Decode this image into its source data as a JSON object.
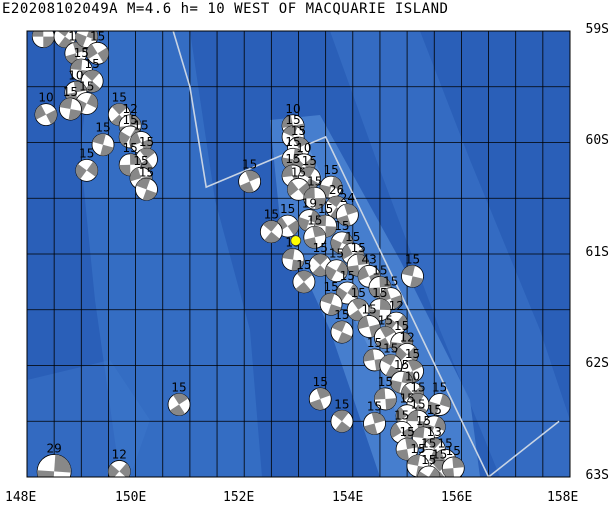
{
  "title": "E20208102049A M=4.6 h= 10 WEST OF MACQUARIE ISLAND",
  "map": {
    "lon_range": [
      148,
      158
    ],
    "lat_range": [
      -63,
      -59
    ],
    "lat_labels": [
      "59S",
      "60S",
      "61S",
      "62S",
      "63S"
    ],
    "lat_values": [
      -59,
      -60,
      -61,
      -62,
      -63
    ],
    "lon_labels": [
      "148E",
      "150E",
      "152E",
      "154E",
      "156E",
      "158E"
    ],
    "lon_values": [
      148,
      150,
      152,
      154,
      156,
      158
    ],
    "colors": {
      "ocean_deep": "#2a5fb8",
      "ocean_mid": "#3d78cc",
      "ridge_shallow": "#5a92dc",
      "grid": "#000000",
      "boundary": "#c8d4e4",
      "beachball_fill": "#888888",
      "event_marker": "#ffff00"
    }
  },
  "event": {
    "id": "E20208102049A",
    "magnitude": "4.6",
    "depth": "10",
    "region": "WEST OF MACQUARIE ISLAND",
    "lon": 152.95,
    "lat": -60.88
  },
  "mechanisms": [
    {
      "lon": 148.3,
      "lat": -59.05,
      "label": "15"
    },
    {
      "lon": 148.7,
      "lat": -59.05,
      "label": "10"
    },
    {
      "lon": 148.9,
      "lat": -59.2,
      "label": "15"
    },
    {
      "lon": 149.1,
      "lat": -59.05,
      "label": "15"
    },
    {
      "lon": 149.3,
      "lat": -59.2,
      "label": "15"
    },
    {
      "lon": 149.0,
      "lat": -59.35,
      "label": "15"
    },
    {
      "lon": 149.2,
      "lat": -59.45,
      "label": "15"
    },
    {
      "lon": 148.9,
      "lat": -59.55,
      "label": "10"
    },
    {
      "lon": 149.1,
      "lat": -59.65,
      "label": "15"
    },
    {
      "lon": 148.35,
      "lat": -59.75,
      "label": "10"
    },
    {
      "lon": 148.8,
      "lat": -59.7,
      "label": "15"
    },
    {
      "lon": 149.7,
      "lat": -59.75,
      "label": "15"
    },
    {
      "lon": 149.9,
      "lat": -59.85,
      "label": "12"
    },
    {
      "lon": 149.9,
      "lat": -59.95,
      "label": "15"
    },
    {
      "lon": 150.1,
      "lat": -60.0,
      "label": "15"
    },
    {
      "lon": 149.4,
      "lat": -60.02,
      "label": "15"
    },
    {
      "lon": 150.2,
      "lat": -60.15,
      "label": "15"
    },
    {
      "lon": 149.9,
      "lat": -60.2,
      "label": "15"
    },
    {
      "lon": 149.1,
      "lat": -60.25,
      "label": "15"
    },
    {
      "lon": 150.1,
      "lat": -60.32,
      "label": "15"
    },
    {
      "lon": 150.2,
      "lat": -60.42,
      "label": "15"
    },
    {
      "lon": 150.8,
      "lat": -62.35,
      "label": "15"
    },
    {
      "lon": 148.5,
      "lat": -62.95,
      "label": "29"
    },
    {
      "lon": 149.7,
      "lat": -62.95,
      "label": "12"
    },
    {
      "lon": 152.9,
      "lat": -59.85,
      "label": "10"
    },
    {
      "lon": 152.9,
      "lat": -59.95,
      "label": "15"
    },
    {
      "lon": 153.0,
      "lat": -60.05,
      "label": "15"
    },
    {
      "lon": 152.9,
      "lat": -60.15,
      "label": "15"
    },
    {
      "lon": 153.1,
      "lat": -60.2,
      "label": "10"
    },
    {
      "lon": 152.9,
      "lat": -60.3,
      "label": "15"
    },
    {
      "lon": 153.2,
      "lat": -60.32,
      "label": "15"
    },
    {
      "lon": 152.1,
      "lat": -60.35,
      "label": "15"
    },
    {
      "lon": 153.6,
      "lat": -60.4,
      "label": "15"
    },
    {
      "lon": 153.0,
      "lat": -60.42,
      "label": "15"
    },
    {
      "lon": 153.3,
      "lat": -60.5,
      "label": "15"
    },
    {
      "lon": 153.7,
      "lat": -60.58,
      "label": "26"
    },
    {
      "lon": 153.9,
      "lat": -60.65,
      "label": "24"
    },
    {
      "lon": 153.2,
      "lat": -60.7,
      "label": "19"
    },
    {
      "lon": 152.8,
      "lat": -60.75,
      "label": "15"
    },
    {
      "lon": 153.5,
      "lat": -60.75,
      "label": "15"
    },
    {
      "lon": 152.5,
      "lat": -60.8,
      "label": "15"
    },
    {
      "lon": 153.3,
      "lat": -60.85,
      "label": "15"
    },
    {
      "lon": 153.8,
      "lat": -60.9,
      "label": "15"
    },
    {
      "lon": 154.0,
      "lat": -61.0,
      "label": "15"
    },
    {
      "lon": 152.9,
      "lat": -61.05,
      "label": "15"
    },
    {
      "lon": 153.4,
      "lat": -61.1,
      "label": "15"
    },
    {
      "lon": 154.1,
      "lat": -61.1,
      "label": "15"
    },
    {
      "lon": 153.7,
      "lat": -61.15,
      "label": "15"
    },
    {
      "lon": 154.3,
      "lat": -61.2,
      "label": "43"
    },
    {
      "lon": 155.1,
      "lat": -61.2,
      "label": "15"
    },
    {
      "lon": 153.1,
      "lat": -61.25,
      "label": "15"
    },
    {
      "lon": 154.5,
      "lat": -61.3,
      "label": "15"
    },
    {
      "lon": 153.9,
      "lat": -61.35,
      "label": "15"
    },
    {
      "lon": 154.7,
      "lat": -61.4,
      "label": "15"
    },
    {
      "lon": 153.6,
      "lat": -61.45,
      "label": "15"
    },
    {
      "lon": 154.1,
      "lat": -61.5,
      "label": "15"
    },
    {
      "lon": 154.5,
      "lat": -61.5,
      "label": "15"
    },
    {
      "lon": 154.8,
      "lat": -61.62,
      "label": "12"
    },
    {
      "lon": 154.3,
      "lat": -61.65,
      "label": "15"
    },
    {
      "lon": 153.8,
      "lat": -61.7,
      "label": "15"
    },
    {
      "lon": 154.6,
      "lat": -61.75,
      "label": "15"
    },
    {
      "lon": 154.9,
      "lat": -61.8,
      "label": "15"
    },
    {
      "lon": 155.0,
      "lat": -61.9,
      "label": "12"
    },
    {
      "lon": 154.4,
      "lat": -61.95,
      "label": "15"
    },
    {
      "lon": 154.7,
      "lat": -62.0,
      "label": "15"
    },
    {
      "lon": 155.1,
      "lat": -62.05,
      "label": "15"
    },
    {
      "lon": 154.9,
      "lat": -62.15,
      "label": "15"
    },
    {
      "lon": 155.1,
      "lat": -62.25,
      "label": "10"
    },
    {
      "lon": 154.6,
      "lat": -62.3,
      "label": "15"
    },
    {
      "lon": 155.2,
      "lat": -62.35,
      "label": "15"
    },
    {
      "lon": 153.4,
      "lat": -62.3,
      "label": "15"
    },
    {
      "lon": 155.6,
      "lat": -62.35,
      "label": "15"
    },
    {
      "lon": 155.0,
      "lat": -62.45,
      "label": "15"
    },
    {
      "lon": 155.2,
      "lat": -62.5,
      "label": "15"
    },
    {
      "lon": 153.8,
      "lat": -62.5,
      "label": "15"
    },
    {
      "lon": 154.4,
      "lat": -62.52,
      "label": "15"
    },
    {
      "lon": 155.5,
      "lat": -62.55,
      "label": "15"
    },
    {
      "lon": 154.9,
      "lat": -62.6,
      "label": "15"
    },
    {
      "lon": 155.3,
      "lat": -62.65,
      "label": "15"
    },
    {
      "lon": 155.5,
      "lat": -62.75,
      "label": "13"
    },
    {
      "lon": 155.0,
      "lat": -62.75,
      "label": "15"
    },
    {
      "lon": 155.4,
      "lat": -62.85,
      "label": "15"
    },
    {
      "lon": 155.7,
      "lat": -62.85,
      "label": "15"
    },
    {
      "lon": 155.2,
      "lat": -62.9,
      "label": "15"
    },
    {
      "lon": 155.6,
      "lat": -62.95,
      "label": "15"
    },
    {
      "lon": 155.85,
      "lat": -62.92,
      "label": "15"
    },
    {
      "lon": 155.4,
      "lat": -63.0,
      "label": "15"
    }
  ]
}
